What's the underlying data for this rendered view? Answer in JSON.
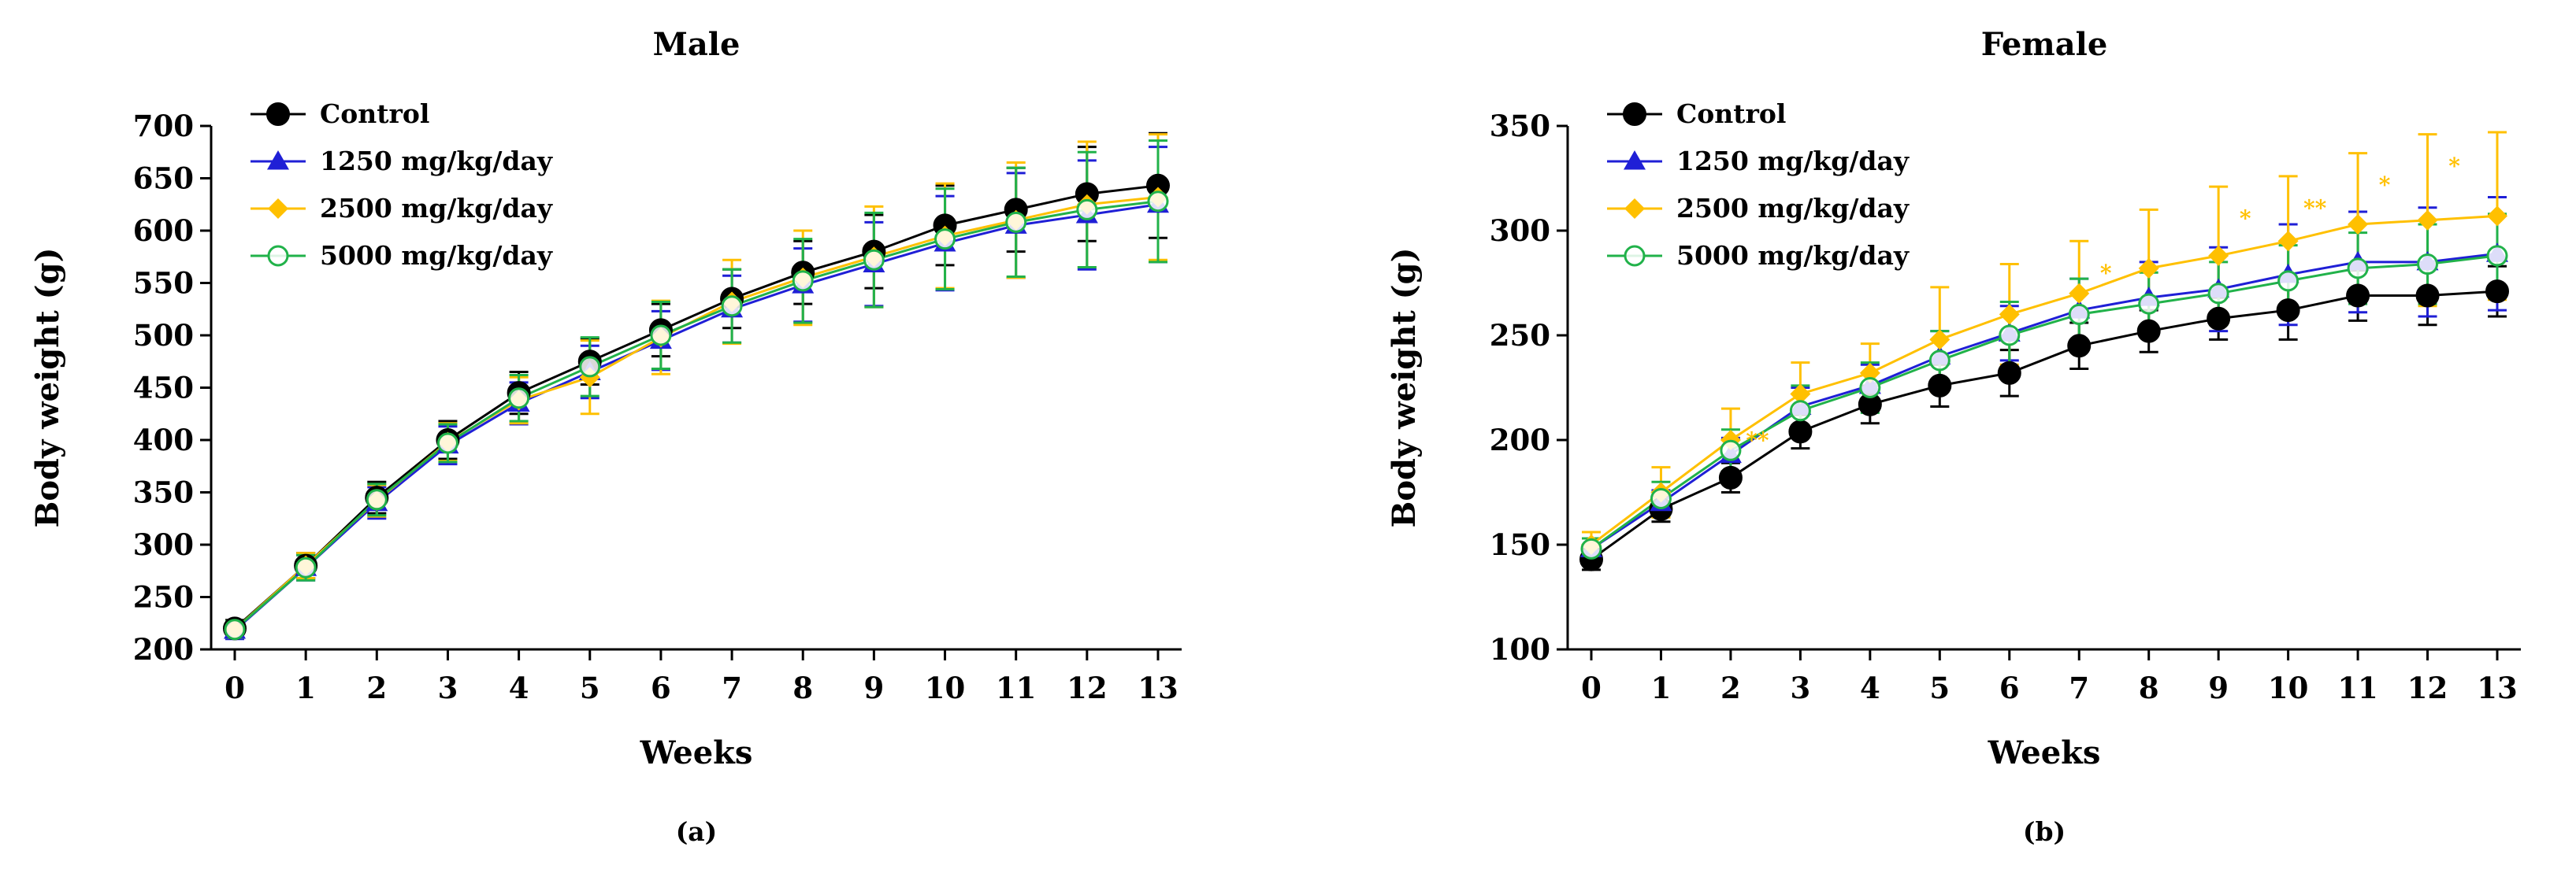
{
  "colors": {
    "control": "#000000",
    "g1250": "#1f1fd6",
    "g2500": "#ffc000",
    "g5000": "#21b24a"
  },
  "chart_data": [
    {
      "type": "line",
      "title": "Male",
      "xlabel": "Weeks",
      "ylabel": "Body weight (g)",
      "panel_label": "(a)",
      "xlim": [
        0,
        13
      ],
      "ylim": [
        200,
        700
      ],
      "ystep": 50,
      "x": [
        0,
        1,
        2,
        3,
        4,
        5,
        6,
        7,
        8,
        9,
        10,
        11,
        12,
        13
      ],
      "legend_position": "top-left",
      "series": [
        {
          "name": "Control",
          "marker": "circle",
          "color_key": "control",
          "values": [
            220,
            280,
            345,
            400,
            445,
            475,
            505,
            535,
            560,
            580,
            605,
            620,
            635,
            643
          ],
          "error": [
            8,
            12,
            15,
            18,
            20,
            22,
            25,
            28,
            30,
            35,
            38,
            40,
            45,
            50
          ]
        },
        {
          "name": "1250 mg/kg/day",
          "marker": "triangle",
          "color_key": "g1250",
          "values": [
            218,
            278,
            340,
            395,
            435,
            465,
            495,
            525,
            548,
            568,
            588,
            605,
            615,
            625
          ],
          "error": [
            8,
            12,
            15,
            18,
            20,
            25,
            28,
            32,
            35,
            40,
            45,
            50,
            52,
            55
          ]
        },
        {
          "name": "2500 mg/kg/day",
          "marker": "diamond",
          "color_key": "g2500",
          "values": [
            219,
            280,
            342,
            398,
            438,
            460,
            498,
            532,
            555,
            575,
            595,
            610,
            625,
            632
          ],
          "error": [
            8,
            12,
            15,
            18,
            22,
            35,
            35,
            40,
            45,
            48,
            50,
            55,
            60,
            60
          ]
        },
        {
          "name": "5000 mg/kg/day",
          "marker": "circle-open",
          "color_key": "g5000",
          "values": [
            219,
            278,
            343,
            397,
            440,
            470,
            500,
            528,
            552,
            572,
            592,
            608,
            620,
            628
          ],
          "error": [
            8,
            12,
            15,
            18,
            22,
            28,
            32,
            35,
            40,
            45,
            48,
            52,
            55,
            58
          ]
        }
      ],
      "annotations": []
    },
    {
      "type": "line",
      "title": "Female",
      "xlabel": "Weeks",
      "ylabel": "Body weight (g)",
      "panel_label": "(b)",
      "xlim": [
        0,
        13
      ],
      "ylim": [
        100,
        350
      ],
      "ystep": 50,
      "x": [
        0,
        1,
        2,
        3,
        4,
        5,
        6,
        7,
        8,
        9,
        10,
        11,
        12,
        13
      ],
      "legend_position": "top-left",
      "series": [
        {
          "name": "Control",
          "marker": "circle",
          "color_key": "control",
          "values": [
            143,
            167,
            182,
            204,
            217,
            226,
            232,
            245,
            252,
            258,
            262,
            269,
            269,
            271
          ],
          "error": [
            5,
            6,
            7,
            8,
            9,
            10,
            11,
            11,
            10,
            10,
            14,
            12,
            14,
            12
          ]
        },
        {
          "name": "1250 mg/kg/day",
          "marker": "triangle",
          "color_key": "g1250",
          "values": [
            148,
            170,
            193,
            216,
            226,
            240,
            251,
            262,
            268,
            272,
            279,
            285,
            285,
            289
          ],
          "error": [
            5,
            6,
            8,
            9,
            10,
            12,
            13,
            15,
            17,
            20,
            24,
            24,
            26,
            27
          ]
        },
        {
          "name": "2500 mg/kg/day",
          "marker": "diamond",
          "color_key": "g2500",
          "values": [
            150,
            175,
            200,
            222,
            232,
            248,
            260,
            270,
            282,
            288,
            295,
            303,
            305,
            307
          ],
          "error": [
            6,
            12,
            15,
            15,
            14,
            25,
            24,
            25,
            28,
            33,
            31,
            34,
            41,
            40
          ]
        },
        {
          "name": "5000 mg/kg/day",
          "marker": "circle-open",
          "color_key": "g5000",
          "values": [
            148,
            172,
            195,
            214,
            225,
            238,
            250,
            260,
            265,
            270,
            276,
            282,
            284,
            288
          ],
          "error": [
            5,
            8,
            10,
            12,
            12,
            14,
            16,
            17,
            15,
            15,
            17,
            17,
            19,
            20
          ]
        }
      ],
      "annotations": [
        {
          "x": 2,
          "text": "**",
          "color_key": "g2500"
        },
        {
          "x": 7,
          "text": "*",
          "color_key": "g2500"
        },
        {
          "x": 9,
          "text": "*",
          "color_key": "g2500"
        },
        {
          "x": 10,
          "text": "**",
          "color_key": "g2500"
        },
        {
          "x": 11,
          "text": "*",
          "color_key": "g2500"
        },
        {
          "x": 12,
          "text": "*",
          "color_key": "g2500"
        }
      ]
    }
  ]
}
